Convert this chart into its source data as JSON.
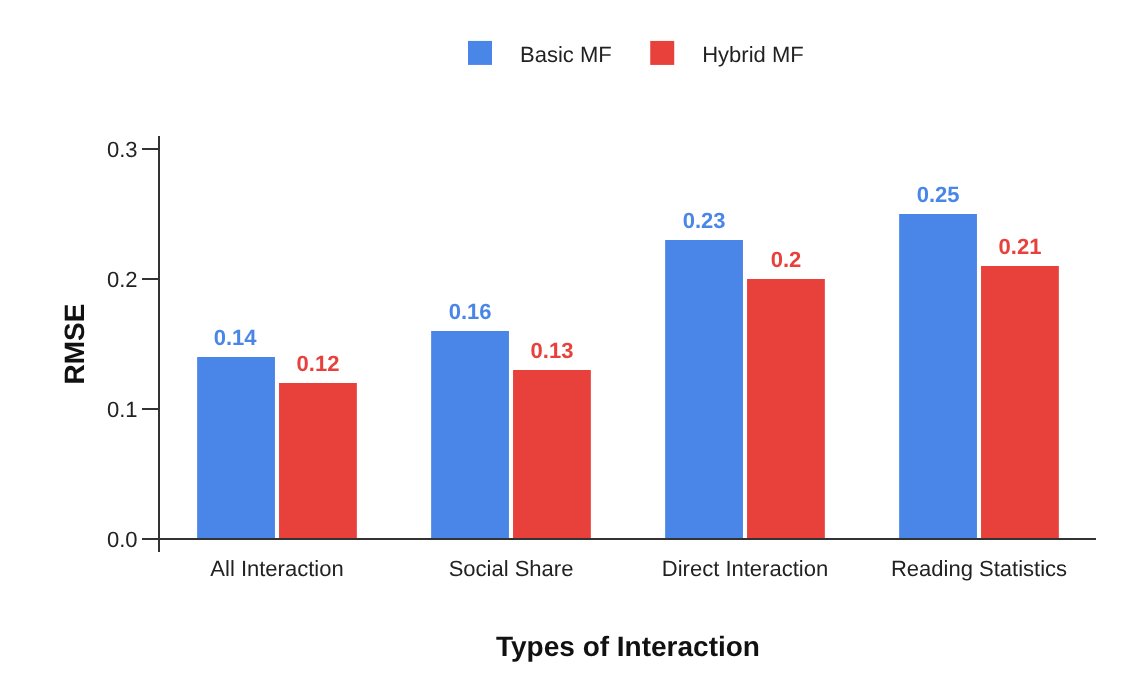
{
  "chart_data": {
    "type": "bar",
    "xlabel": "Types of Interaction",
    "ylabel": "RMSE",
    "categories": [
      "All Interaction",
      "Social Share",
      "Direct Interaction",
      "Reading Statistics"
    ],
    "series": [
      {
        "name": "Basic MF",
        "color": "#4a86e8",
        "values": [
          0.14,
          0.16,
          0.23,
          0.25
        ]
      },
      {
        "name": "Hybrid MF",
        "color": "#e8413c",
        "values": [
          0.12,
          0.13,
          0.2,
          0.21
        ]
      }
    ],
    "ylim": [
      -0.01,
      0.31
    ],
    "yticks": [
      {
        "value": 0,
        "label": "0.0"
      },
      0.1,
      0.2,
      0.3
    ],
    "data_labels": true,
    "grid": false,
    "legend": "top"
  }
}
